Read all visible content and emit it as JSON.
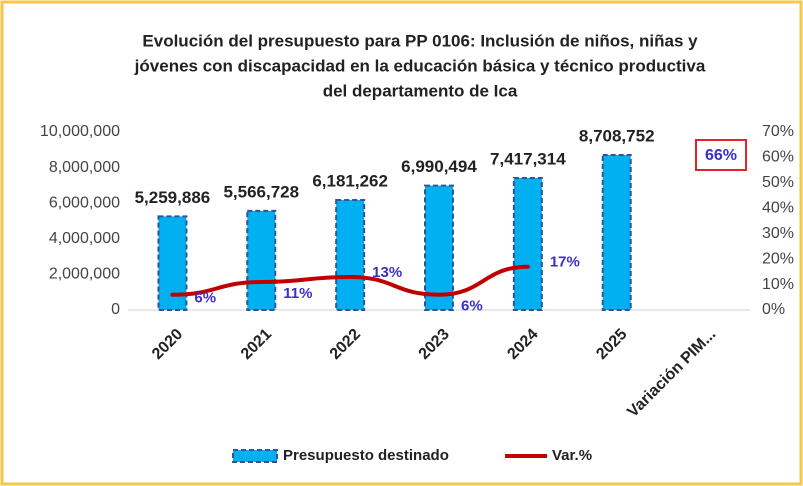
{
  "chart_data": {
    "type": "bar_line",
    "title": [
      "Evolución del presupuesto para PP 0106: Inclusión de niños, niñas y",
      "jóvenes con discapacidad en la educación básica y técnico productiva",
      "del departamento de Ica"
    ],
    "categories": [
      "2020",
      "2021",
      "2022",
      "2023",
      "2024",
      "2025",
      "Variación PIM..."
    ],
    "series": [
      {
        "name": "Presupuesto destinado",
        "color": "#00b0f0",
        "values": [
          5259886,
          5566728,
          6181262,
          6990494,
          7417314,
          8708752,
          null
        ],
        "value_labels": [
          "5,259,886",
          "5,566,728",
          "6,181,262",
          "6,990,494",
          "7,417,314",
          "8,708,752",
          null
        ]
      },
      {
        "name": "Var.%",
        "color": "#c00000",
        "axis": "y2",
        "values": [
          6,
          11,
          13,
          6,
          17,
          null,
          null
        ],
        "value_labels": [
          "6%",
          "11%",
          "13%",
          "6%",
          "17%",
          null,
          null
        ]
      }
    ],
    "annotations": [
      "66%"
    ],
    "ylim": [
      0,
      10000000
    ],
    "yticks": [
      0,
      {
        "value": 2000000,
        "label": "2,000,000"
      },
      {
        "value": 4000000,
        "label": "4,000,000"
      },
      {
        "value": 6000000,
        "label": "6,000,000"
      },
      {
        "value": 8000000,
        "label": "8,000,000"
      },
      {
        "value": 10000000,
        "label": "10,000,000"
      }
    ],
    "y2lim": [
      0,
      70
    ],
    "y2ticks": [
      {
        "value": 0,
        "label": "0%"
      },
      {
        "value": 10,
        "label": "10%"
      },
      {
        "value": 20,
        "label": "20%"
      },
      {
        "value": 30,
        "label": "30%"
      },
      {
        "value": 40,
        "label": "40%"
      },
      {
        "value": 50,
        "label": "50%"
      },
      {
        "value": 60,
        "label": "60%"
      },
      {
        "value": 70,
        "label": "70%"
      }
    ],
    "legend": "bottom"
  }
}
